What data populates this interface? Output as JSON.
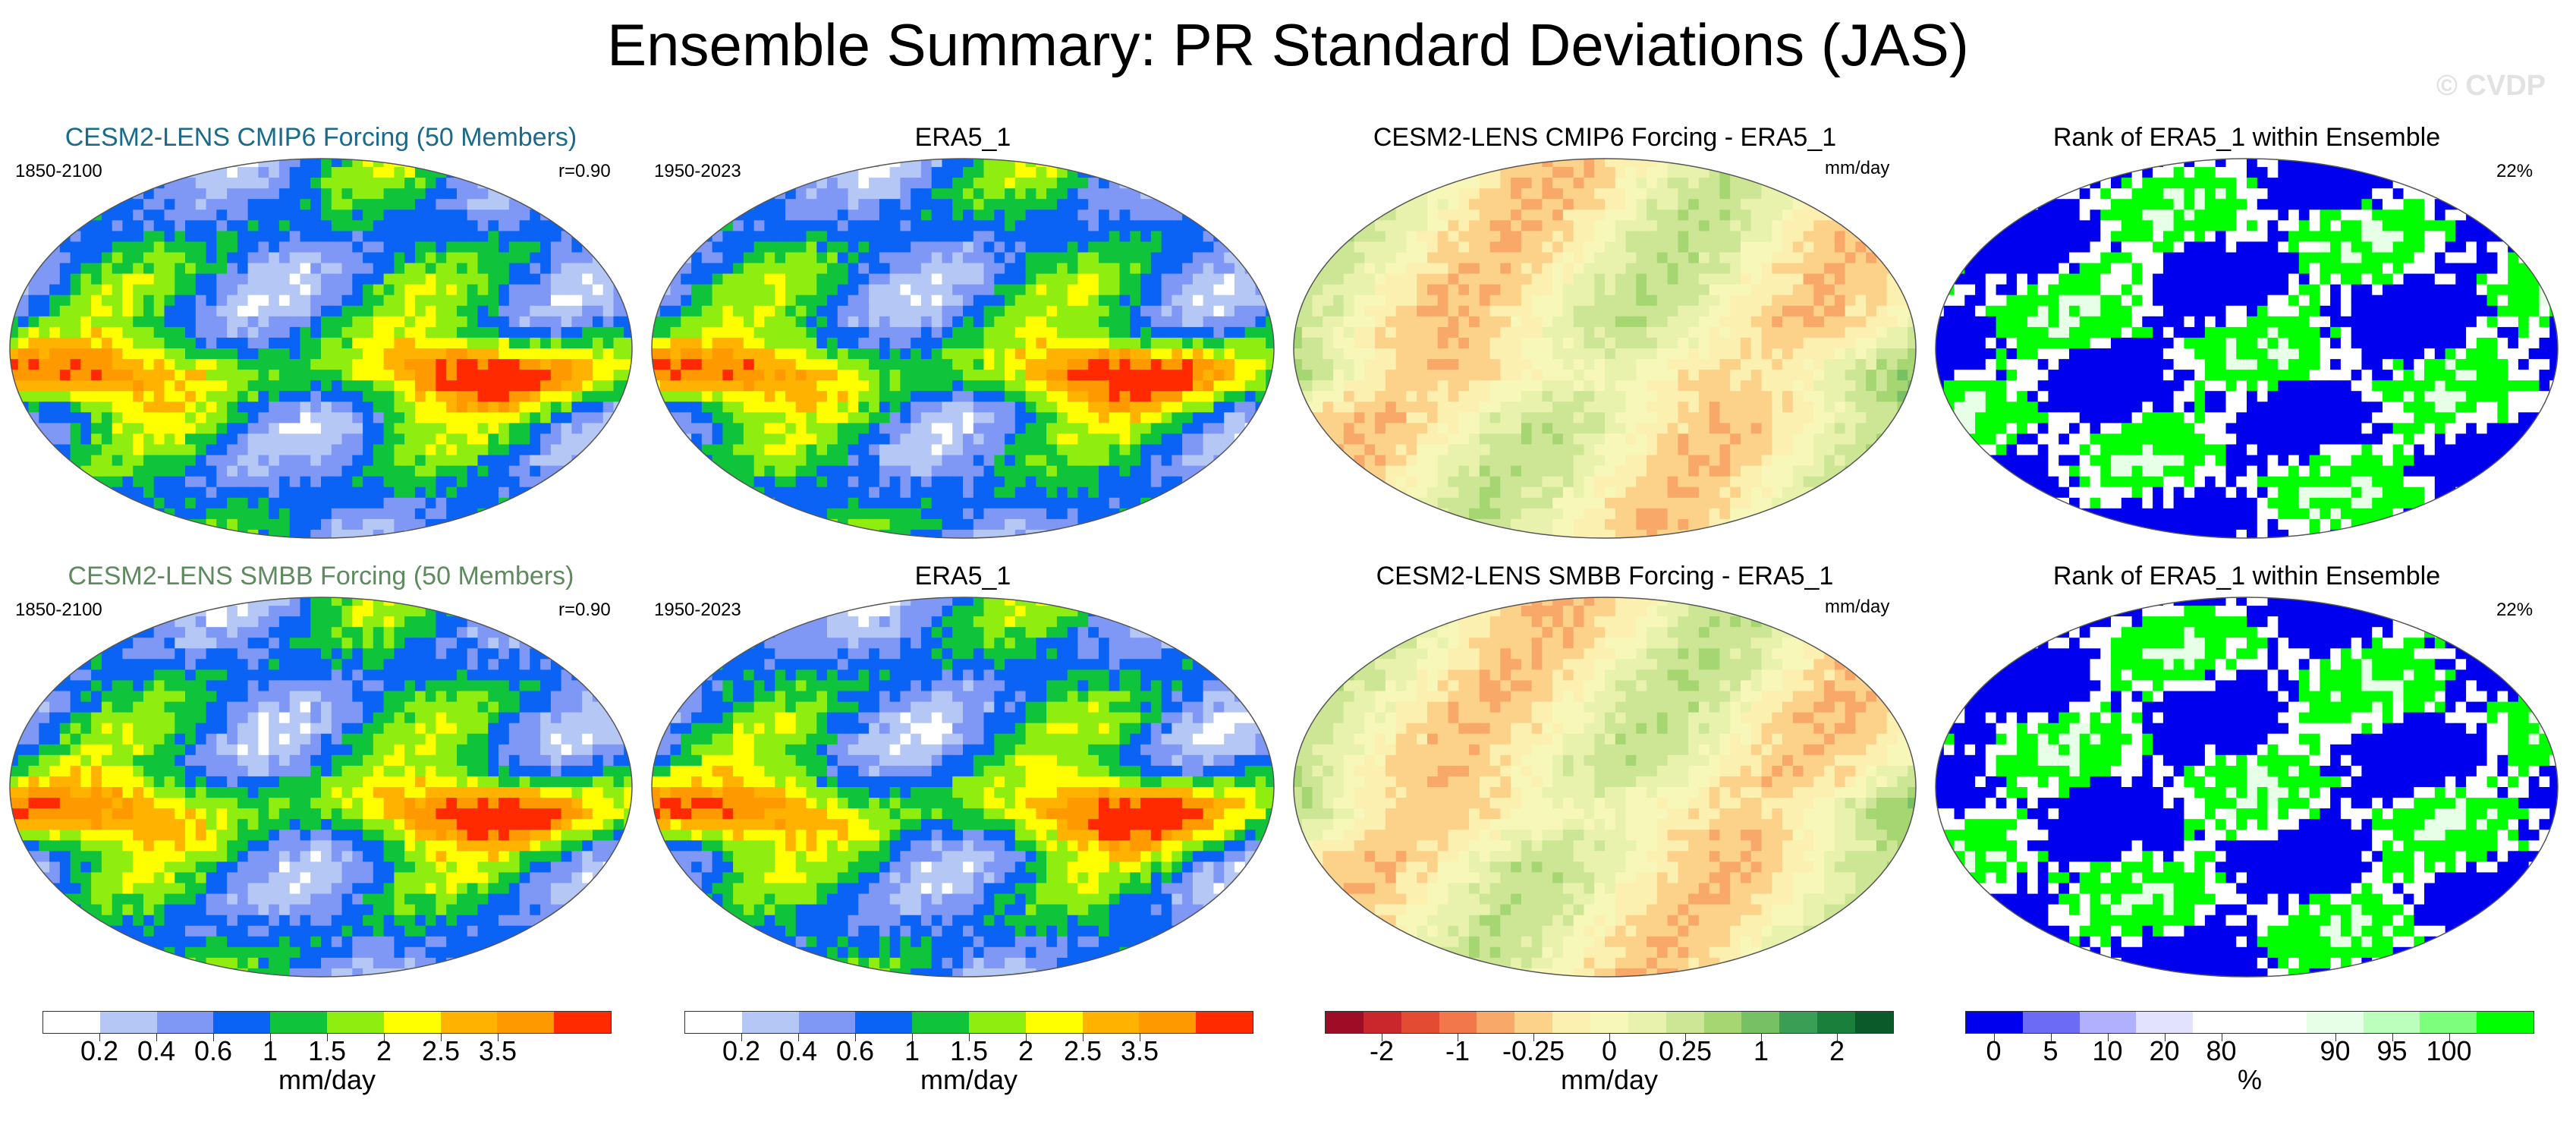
{
  "figure_title": "Ensemble Summary: PR Standard Deviations (JAS)",
  "watermark": "© CVDP",
  "colors": {
    "cesm2_cmip6_title": "#1a6b8a",
    "cesm2_smbb_title": "#5f8a5f"
  },
  "chart_data": [
    {
      "type": "heatmap",
      "title": "CESM2-LENS CMIP6 Forcing (50 Members)",
      "years": "1850-2100",
      "corr": "r=0.90",
      "palette": "pr",
      "seed": 11
    },
    {
      "type": "heatmap",
      "title": "ERA5_1",
      "years": "1950-2023",
      "palette": "pr",
      "seed": 23
    },
    {
      "type": "heatmap",
      "title": "CESM2-LENS CMIP6 Forcing - ERA5_1",
      "units_corner": "mm/day",
      "palette": "diff",
      "seed": 37
    },
    {
      "type": "heatmap",
      "title": "Rank of ERA5_1 within Ensemble",
      "pct": "22%",
      "palette": "rank",
      "seed": 41
    },
    {
      "type": "heatmap",
      "title": "CESM2-LENS SMBB Forcing (50 Members)",
      "years": "1850-2100",
      "corr": "r=0.90",
      "palette": "pr",
      "seed": 53
    },
    {
      "type": "heatmap",
      "title": "ERA5_1",
      "years": "1950-2023",
      "palette": "pr",
      "seed": 67
    },
    {
      "type": "heatmap",
      "title": "CESM2-LENS SMBB Forcing - ERA5_1",
      "units_corner": "mm/day",
      "palette": "diff",
      "seed": 79
    },
    {
      "type": "heatmap",
      "title": "Rank of ERA5_1 within Ensemble",
      "pct": "22%",
      "palette": "rank",
      "seed": 83
    }
  ],
  "colorbars": [
    {
      "colors": [
        "#ffffff",
        "#b4c7f5",
        "#7f97f5",
        "#0a63f5",
        "#0fc43a",
        "#8fed0f",
        "#ffff00",
        "#ffb200",
        "#ff9900",
        "#ff2a00"
      ],
      "labels": [
        "0.2",
        "0.4",
        "0.6",
        "1",
        "1.5",
        "2",
        "2.5",
        "3.5"
      ],
      "units": "mm/day"
    },
    {
      "colors": [
        "#ffffff",
        "#b4c7f5",
        "#7f97f5",
        "#0a63f5",
        "#0fc43a",
        "#8fed0f",
        "#ffff00",
        "#ffb200",
        "#ff9900",
        "#ff2a00"
      ],
      "labels": [
        "0.2",
        "0.4",
        "0.6",
        "1",
        "1.5",
        "2",
        "2.5",
        "3.5"
      ],
      "units": "mm/day"
    },
    {
      "colors": [
        "#9e0d25",
        "#c9272c",
        "#e44b33",
        "#f2774a",
        "#f8a868",
        "#fcd28a",
        "#fcf0b1",
        "#f6f7b8",
        "#e9f2ad",
        "#cde695",
        "#a6d672",
        "#77c164",
        "#3a9f55",
        "#1a7f3b",
        "#0a5a2a"
      ],
      "labels": [
        "-2",
        "-1",
        "-0.25",
        "0",
        "0.25",
        "1",
        "2"
      ],
      "units": "mm/day"
    },
    {
      "colors": [
        "#0000ee",
        "#6b6bf5",
        "#b0b0ff",
        "#e2e2ff",
        "#ffffff",
        "#ffffff",
        "#e6ffe6",
        "#bcffbc",
        "#7dff7d",
        "#00ff00"
      ],
      "labels": [
        "0",
        "5",
        "10",
        "20",
        "80",
        "90",
        "95",
        "100"
      ],
      "units": "%"
    }
  ]
}
